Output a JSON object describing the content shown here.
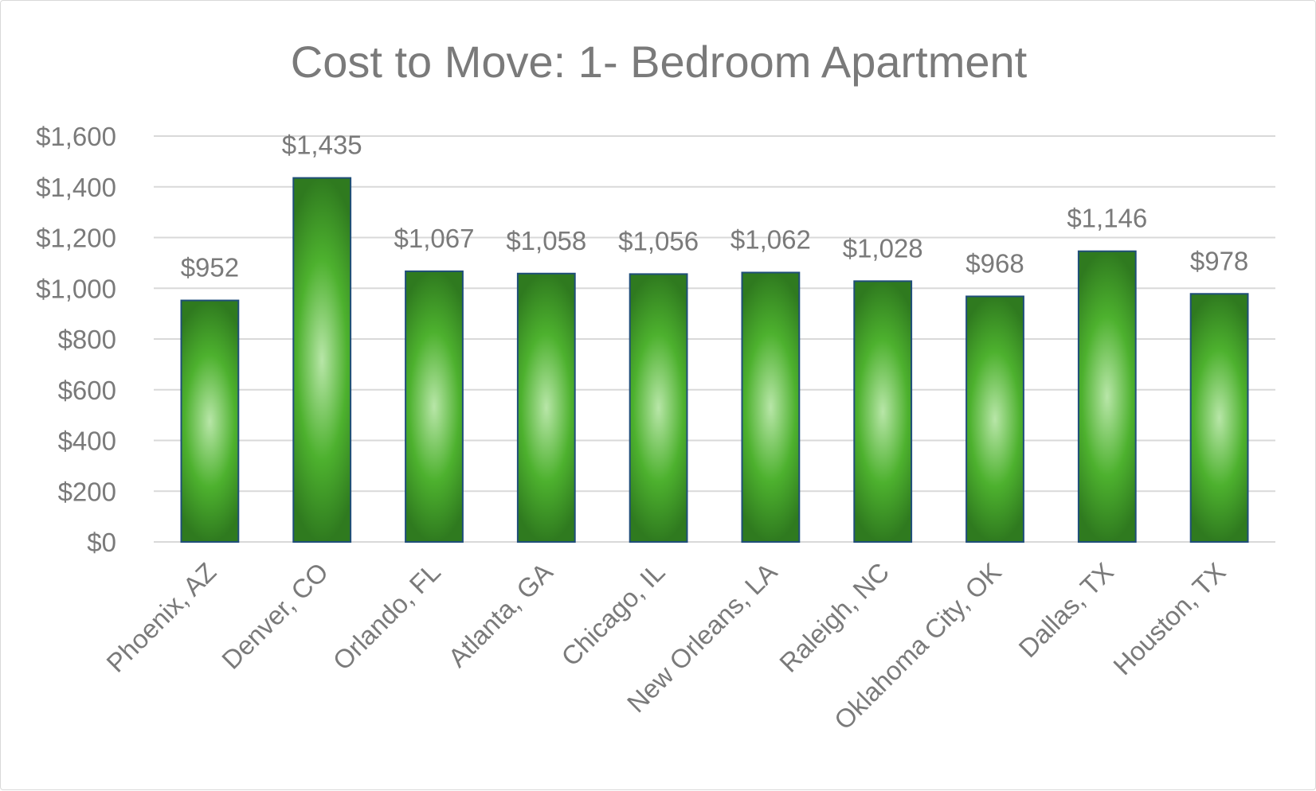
{
  "chart_data": {
    "type": "bar",
    "title": "Cost to Move: 1- Bedroom Apartment",
    "xlabel": "",
    "ylabel": "",
    "categories": [
      "Phoenix, AZ",
      "Denver, CO",
      "Orlando, FL",
      "Atlanta, GA",
      "Chicago, IL",
      "New Orleans, LA",
      "Raleigh, NC",
      "Oklahoma City, OK",
      "Dallas, TX",
      "Houston, TX"
    ],
    "values": [
      952,
      1435,
      1067,
      1058,
      1056,
      1062,
      1028,
      968,
      1146,
      978
    ],
    "value_labels": [
      "$952",
      "$1,435",
      "$1,067",
      "$1,058",
      "$1,056",
      "$1,062",
      "$1,028",
      "$968",
      "$1,146",
      "$978"
    ],
    "ylim": [
      0,
      1600
    ],
    "yticks": [
      0,
      200,
      400,
      600,
      800,
      1000,
      1200,
      1400,
      1600
    ],
    "ytick_labels": [
      "$0",
      "$200",
      "$400",
      "$600",
      "$800",
      "$1,000",
      "$1,200",
      "$1,400",
      "$1,600"
    ],
    "grid": true,
    "legend": "none",
    "colors": {
      "bar_dark": "#2f7a1f",
      "bar_mid": "#4db12e",
      "bar_light": "#b8e6a8",
      "bar_border": "#1f4e79"
    }
  }
}
